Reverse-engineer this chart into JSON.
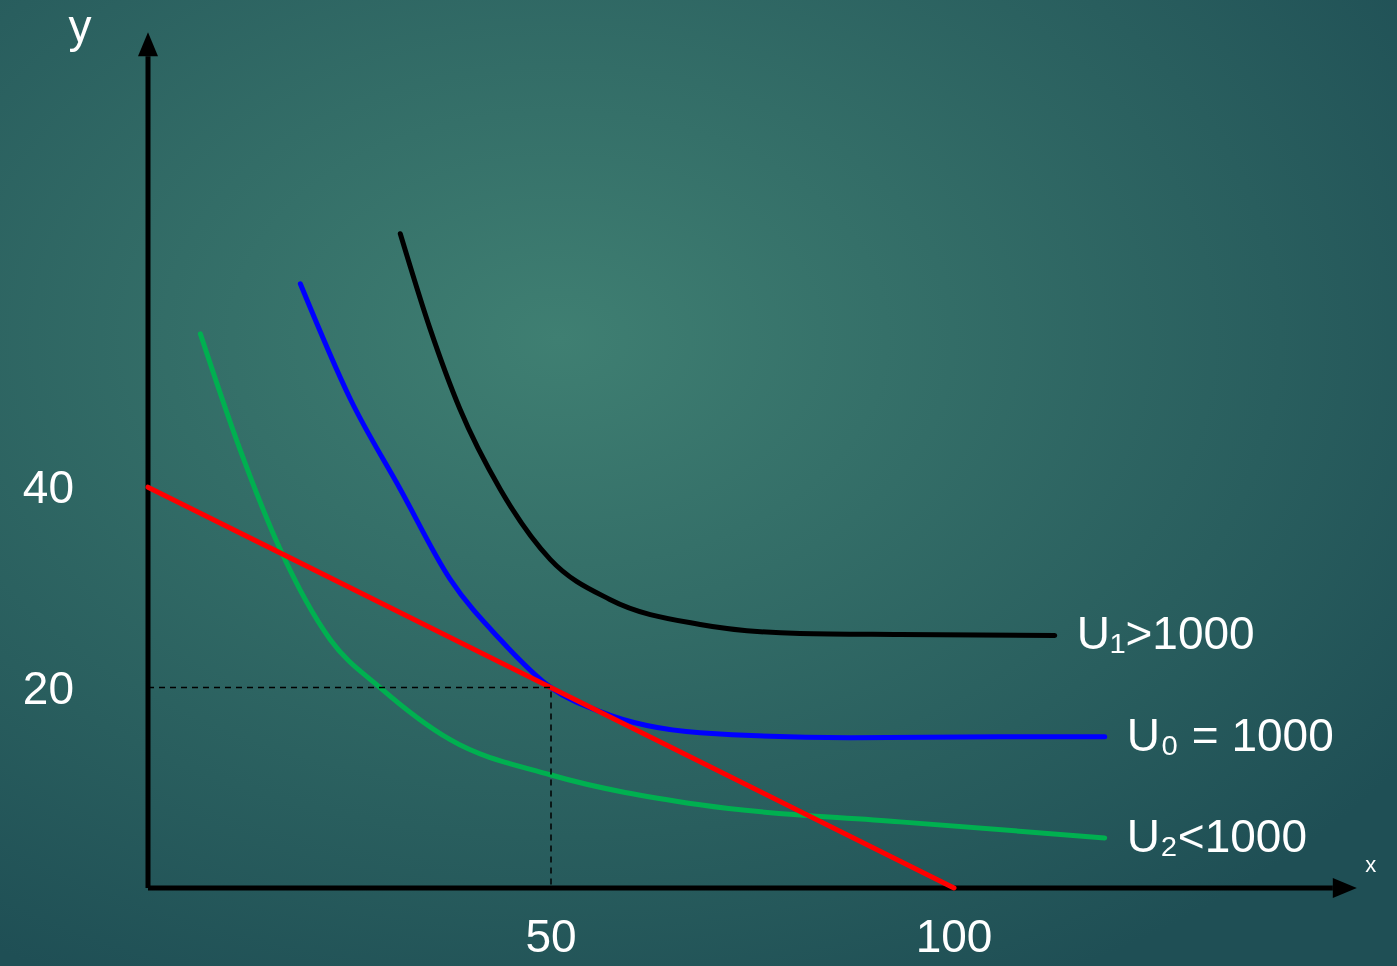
{
  "chart_data": {
    "type": "line",
    "xlabel": "x",
    "ylabel": "y",
    "xlim": [
      0,
      147
    ],
    "ylim": [
      0,
      83
    ],
    "xticks": [
      50,
      100
    ],
    "yticks": [
      20,
      40
    ],
    "grid": false,
    "series": [
      {
        "name": "U₁>1000",
        "color": "#000000",
        "x": [
          31.3,
          35,
          38.7,
          43.7,
          49.9,
          57.3,
          68.5,
          80.9,
          93.3,
          112.5
        ],
        "values": [
          65.3,
          55.8,
          47.8,
          39.8,
          32.8,
          28.8,
          26.3,
          25.4,
          25.3,
          25.2
        ]
      },
      {
        "name": "U₀ = 1000",
        "color": "#0000ff",
        "x": [
          18.9,
          25.1,
          31.3,
          37.5,
          43.7,
          50,
          56.1,
          68.5,
          87.1,
          105.7,
          118.7
        ],
        "values": [
          60.3,
          48.8,
          39.8,
          30.8,
          24.8,
          20,
          17.6,
          15.5,
          15,
          15.1,
          15.1
        ]
      },
      {
        "name": "U₂<1000",
        "color": "#00b050",
        "x": [
          6.5,
          11.4,
          16.4,
          22.6,
          28.8,
          37.5,
          49.9,
          68.5,
          93.3,
          118.7
        ],
        "values": [
          55.3,
          43.8,
          33.8,
          24.8,
          20,
          14.8,
          11.3,
          8.3,
          6.6,
          5
        ]
      },
      {
        "color": "#ff0000",
        "x": [
          0,
          100
        ],
        "values": [
          40,
          0
        ]
      },
      {
        "color": "#000000",
        "line_style": "dashed",
        "x": [
          0,
          50,
          50
        ],
        "values": [
          20,
          20,
          0
        ]
      }
    ]
  }
}
